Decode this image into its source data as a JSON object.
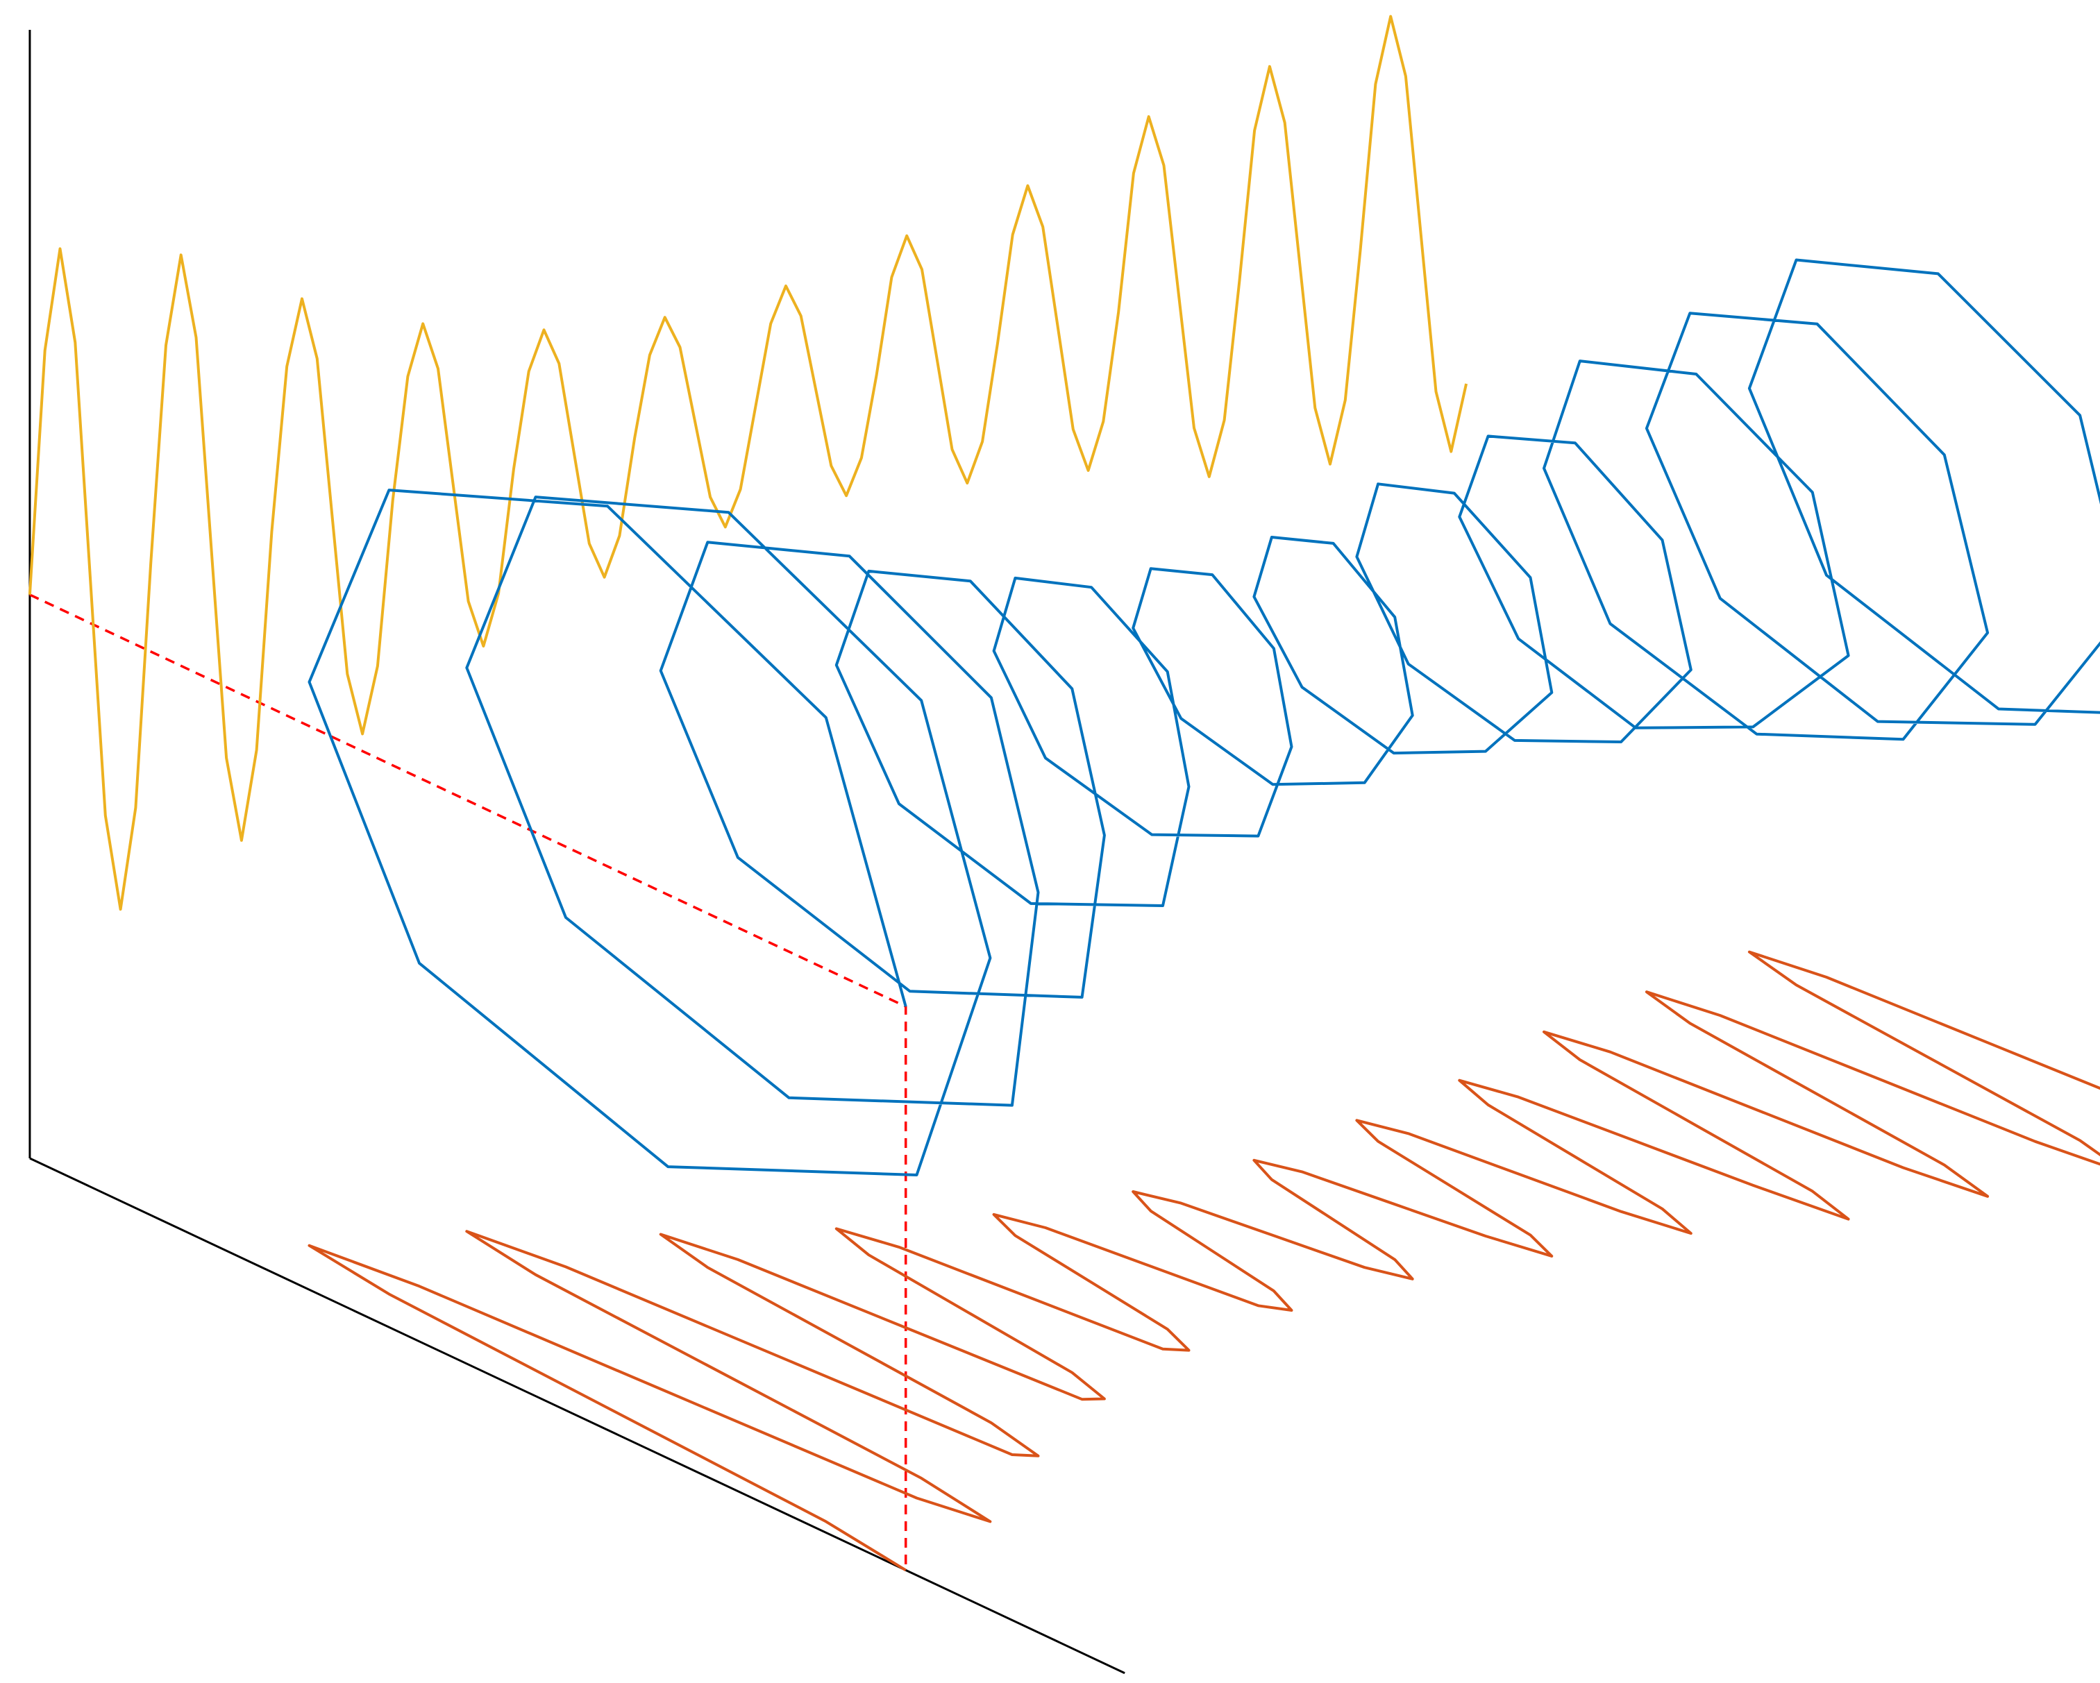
{
  "chart_data": {
    "type": "line3d",
    "x": [
      0,
      1,
      2,
      3,
      4,
      5,
      6,
      7,
      8,
      9,
      10,
      11,
      12,
      13,
      14,
      15,
      16,
      17,
      18,
      19,
      20,
      21,
      22,
      23,
      24,
      25,
      26,
      27,
      28,
      29,
      30,
      31,
      32,
      33,
      34,
      35,
      36,
      37,
      38,
      39,
      40,
      41,
      42,
      43,
      44,
      45,
      46,
      47,
      48,
      49,
      50,
      51,
      52,
      53,
      54,
      55,
      56,
      57,
      58,
      59,
      60,
      61,
      62,
      63,
      64,
      65,
      66,
      67,
      68,
      69,
      70,
      71,
      72,
      73,
      74,
      75,
      76,
      77,
      78,
      79,
      80,
      81,
      82,
      83,
      84,
      85,
      86,
      87,
      88,
      89,
      90,
      91,
      92,
      93,
      94,
      95
    ],
    "y": [
      0.9,
      0.64,
      0,
      -0.64,
      -0.9,
      -0.64,
      0,
      0.64,
      0.8,
      0.57,
      0,
      -0.57,
      -0.8,
      -0.57,
      0,
      0.57,
      0.6,
      0.43,
      0,
      -0.43,
      -0.6,
      -0.43,
      0,
      0.43,
      0.45,
      0.32,
      0,
      -0.32,
      -0.45,
      -0.32,
      0,
      0.32,
      0.35,
      0.25,
      0,
      -0.25,
      -0.35,
      -0.25,
      0,
      0.25,
      0.3,
      0.21,
      0,
      -0.21,
      -0.3,
      -0.21,
      0,
      0.21,
      0.3,
      0.21,
      0,
      -0.21,
      -0.3,
      -0.21,
      0,
      0.21,
      0.35,
      0.25,
      0,
      -0.25,
      -0.35,
      -0.25,
      0,
      0.25,
      0.4,
      0.28,
      0,
      -0.28,
      -0.4,
      -0.28,
      0,
      0.28,
      0.5,
      0.36,
      0,
      -0.36,
      -0.5,
      -0.36,
      0,
      0.36,
      0.55,
      0.39,
      0,
      -0.39,
      -0.55,
      -0.39,
      0,
      0.39,
      0.6,
      0.43,
      0,
      -0.43,
      -0.6,
      -0.43,
      0,
      0.43
    ],
    "z": [
      0,
      0.64,
      0.9,
      0.64,
      0,
      -0.64,
      -0.9,
      -0.64,
      0,
      0.57,
      0.8,
      0.57,
      0,
      -0.57,
      -0.8,
      -0.57,
      0,
      0.43,
      0.6,
      0.43,
      0,
      -0.43,
      -0.6,
      -0.43,
      0,
      0.32,
      0.45,
      0.32,
      0,
      -0.32,
      -0.45,
      -0.32,
      0,
      0.25,
      0.35,
      0.25,
      0,
      -0.25,
      -0.35,
      -0.25,
      0,
      0.21,
      0.3,
      0.21,
      0,
      -0.21,
      -0.3,
      -0.21,
      0,
      0.21,
      0.3,
      0.21,
      0,
      -0.21,
      -0.3,
      -0.21,
      0,
      0.25,
      0.35,
      0.25,
      0,
      -0.25,
      -0.35,
      -0.25,
      0,
      0.28,
      0.4,
      0.28,
      0,
      -0.28,
      -0.4,
      -0.28,
      0,
      0.36,
      0.5,
      0.36,
      0,
      -0.36,
      -0.5,
      -0.36,
      0,
      0.39,
      0.55,
      0.39,
      0,
      -0.39,
      -0.55,
      -0.39,
      0,
      0.43,
      0.6,
      0.43,
      0,
      -0.43,
      -0.6,
      -0.43
    ],
    "xlim": [
      0,
      95
    ],
    "ylim": [
      -1.5,
      1.5
    ],
    "zlim": [
      -1.5,
      1.5
    ],
    "colors": {
      "curve": "#0072bd",
      "wall": "#edb120",
      "floor": "#d95319",
      "marker": "#ff0000"
    }
  }
}
